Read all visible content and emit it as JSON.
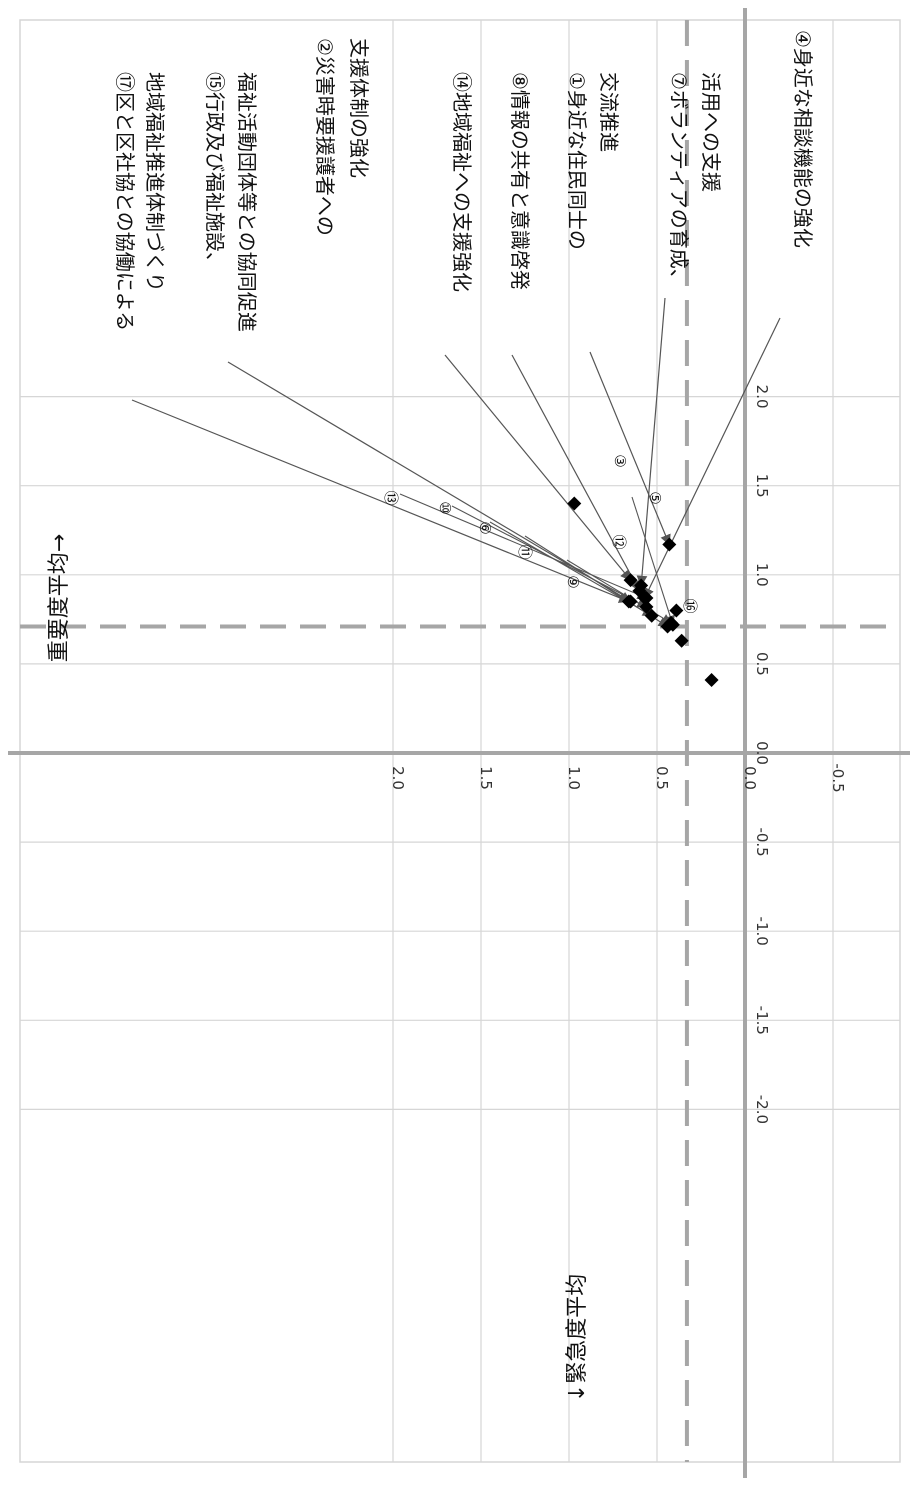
{
  "chart_data": {
    "type": "scatter",
    "orientation": "rotated-90-clockwise",
    "x_range": [
      -2.0,
      2.0
    ],
    "y_range": [
      -0.5,
      2.0
    ],
    "x_ticks": [
      "-2.0",
      "-1.5",
      "-1.0",
      "-0.5",
      "0.0",
      "0.5",
      "1.0",
      "1.5",
      "2.0"
    ],
    "y_ticks": [
      "-0.5",
      "0.0",
      "0.5",
      "1.0",
      "1.5",
      "2.0"
    ],
    "x_average": 0.71,
    "y_average": 0.33,
    "x_average_label": "重要度平均→",
    "y_average_label": "↓緊急度平均",
    "grid": true,
    "marker": "black diamond",
    "points": [
      {
        "num": "①",
        "x": 1.17,
        "y": 0.43
      },
      {
        "num": "②",
        "x": 1.4,
        "y": 0.97
      },
      {
        "num": "③",
        "x": 0.8,
        "y": 0.39
      },
      {
        "num": "④",
        "x": 0.87,
        "y": 0.57
      },
      {
        "num": "⑤",
        "x": 0.72,
        "y": 0.41
      },
      {
        "num": "⑥",
        "x": 0.77,
        "y": 0.53
      },
      {
        "num": "⑦",
        "x": 0.94,
        "y": 0.59
      },
      {
        "num": "⑧",
        "x": 0.91,
        "y": 0.6
      },
      {
        "num": "⑨",
        "x": 0.73,
        "y": 0.42
      },
      {
        "num": "⑩",
        "x": 0.82,
        "y": 0.56
      },
      {
        "num": "⑪",
        "x": 0.71,
        "y": 0.44
      },
      {
        "num": "⑫",
        "x": 0.63,
        "y": 0.36
      },
      {
        "num": "⑬",
        "x": 0.87,
        "y": 0.56
      },
      {
        "num": "⑭",
        "x": 0.97,
        "y": 0.65
      },
      {
        "num": "⑮",
        "x": 0.85,
        "y": 0.65
      },
      {
        "num": "⑯",
        "x": 0.41,
        "y": 0.19
      },
      {
        "num": "⑰",
        "x": 0.85,
        "y": 0.66
      }
    ],
    "annotations": [
      {
        "lines": [
          "⑰区と区社協との協働による",
          "地域福祉推進体制づくり"
        ],
        "target": 16
      },
      {
        "lines": [
          "⑮行政及び福祉施設、",
          "福祉活動団体等との協同促進"
        ],
        "target": 14
      },
      {
        "lines": [
          "②災害時要援護者への",
          "支援体制の強化"
        ],
        "target": 1
      },
      {
        "lines": [
          "⑭地域福祉への支援強化"
        ],
        "target": 13
      },
      {
        "lines": [
          "⑧情報の共有と意識啓発"
        ],
        "target": 7
      },
      {
        "lines": [
          "①身近な住民同士の",
          "交流推進"
        ],
        "target": 0
      },
      {
        "lines": [
          "⑦ボランティアの育成、",
          "活用への支援"
        ],
        "target": 6
      },
      {
        "lines": [
          "④身近な相談機能の強化"
        ],
        "target": 3
      }
    ],
    "number_labels": [
      {
        "text": "③",
        "target": 2
      },
      {
        "text": "⑤",
        "target": 4
      },
      {
        "text": "⑫",
        "target": 11
      },
      {
        "text": "⑯",
        "target": 15
      },
      {
        "text": "⑨",
        "target": 8
      },
      {
        "text": "⑪",
        "target": 10
      },
      {
        "text": "⑥",
        "target": 5
      },
      {
        "text": "⑩",
        "target": 9
      },
      {
        "text": "⑬",
        "target": 12
      }
    ],
    "colors": {
      "grid": "#d6d6d6",
      "axis": "#a6a6a6",
      "average": "#a6a6a6",
      "marker": "#000000",
      "leader": "#555555"
    }
  }
}
